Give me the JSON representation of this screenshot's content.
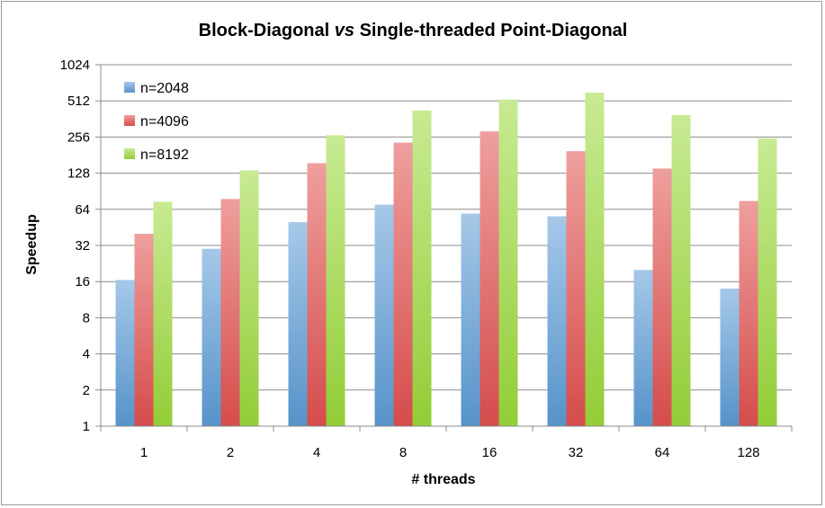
{
  "chart_data": {
    "type": "bar",
    "title_prefix": "Block-Diagonal ",
    "title_italic": "vs",
    "title_suffix": " Single-threaded Point-Diagonal",
    "xlabel": "# threads",
    "ylabel": "Speedup",
    "yscale": "log2",
    "ylim": [
      1,
      1024
    ],
    "yticks": [
      "1",
      "2",
      "4",
      "8",
      "16",
      "32",
      "64",
      "128",
      "256",
      "512",
      "1024"
    ],
    "categories": [
      "1",
      "2",
      "4",
      "8",
      "16",
      "32",
      "64",
      "128"
    ],
    "series": [
      {
        "name": "n=2048",
        "color": "#5b9bd5",
        "values": [
          16.5,
          30,
          50,
          70,
          59,
          56,
          20,
          14
        ]
      },
      {
        "name": "n=4096",
        "color": "#e0504f",
        "values": [
          40,
          78,
          155,
          230,
          285,
          195,
          140,
          75
        ]
      },
      {
        "name": "n=8192",
        "color": "#9bd83a",
        "values": [
          74,
          135,
          265,
          425,
          525,
          600,
          390,
          250
        ]
      }
    ],
    "grid": true,
    "legend_position": "top-left"
  }
}
